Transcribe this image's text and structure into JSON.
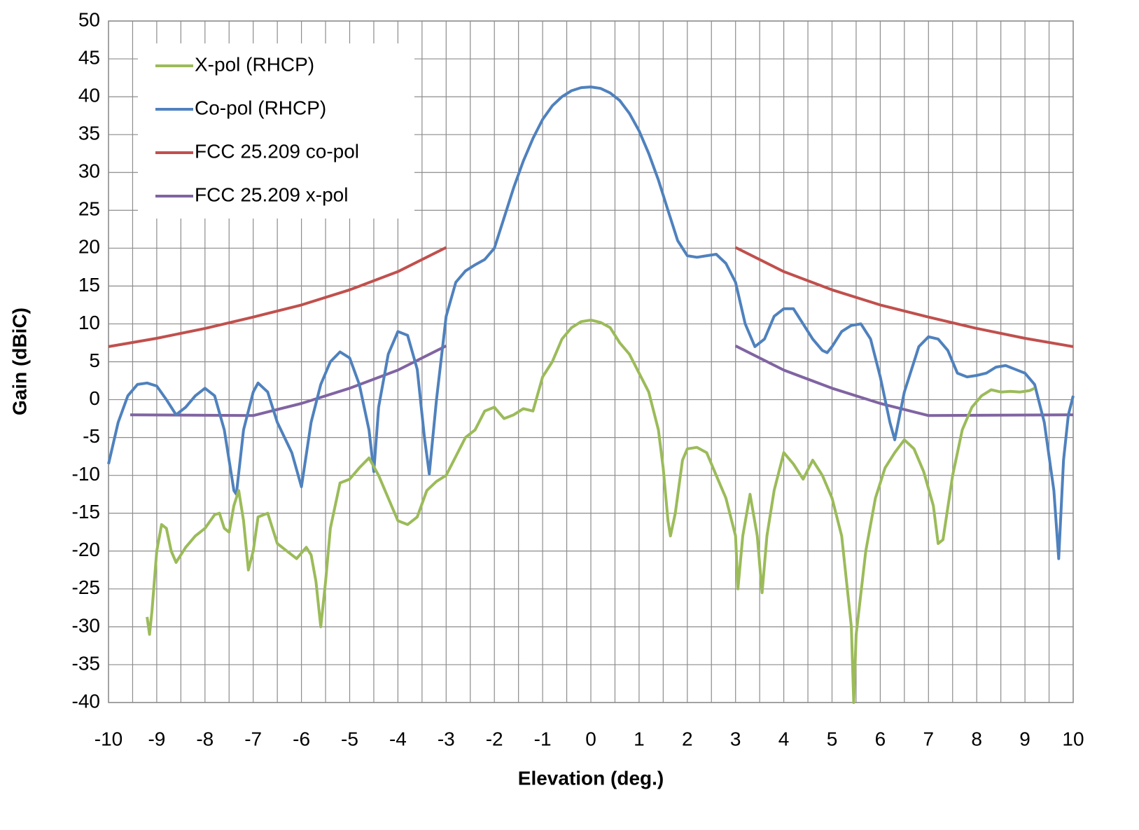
{
  "chart_data": {
    "type": "line",
    "x_label": "Elevation (deg.)",
    "y_label": "Gain (dBiC)",
    "xlim": [
      -10,
      10
    ],
    "ylim": [
      -40,
      50
    ],
    "xticks": [
      -10,
      -9,
      -8,
      -7,
      -6,
      -5,
      -4,
      -3,
      -2,
      -1,
      0,
      1,
      2,
      3,
      4,
      5,
      6,
      7,
      8,
      9,
      10
    ],
    "yticks": [
      -40,
      -35,
      -30,
      -25,
      -20,
      -15,
      -10,
      -5,
      0,
      5,
      10,
      15,
      20,
      25,
      30,
      35,
      40,
      45,
      50
    ],
    "grid": true,
    "minor_x_grid": true,
    "legend": "upper-left",
    "series": [
      {
        "name": "X-pol (RHCP)",
        "color": "#9bbb59",
        "x": [
          -9.2,
          -9.15,
          -9.1,
          -9.0,
          -8.9,
          -8.8,
          -8.7,
          -8.6,
          -8.4,
          -8.2,
          -8.0,
          -7.8,
          -7.7,
          -7.6,
          -7.5,
          -7.4,
          -7.3,
          -7.2,
          -7.1,
          -7.0,
          -6.9,
          -6.7,
          -6.5,
          -6.3,
          -6.1,
          -5.9,
          -5.8,
          -5.7,
          -5.6,
          -5.5,
          -5.4,
          -5.2,
          -5.0,
          -4.8,
          -4.6,
          -4.4,
          -4.2,
          -4.0,
          -3.8,
          -3.6,
          -3.4,
          -3.2,
          -3.0,
          -2.8,
          -2.6,
          -2.4,
          -2.2,
          -2.0,
          -1.8,
          -1.6,
          -1.4,
          -1.2,
          -1.0,
          -0.8,
          -0.6,
          -0.4,
          -0.2,
          0,
          0.2,
          0.4,
          0.6,
          0.8,
          1.0,
          1.2,
          1.4,
          1.5,
          1.6,
          1.65,
          1.75,
          1.9,
          2.0,
          2.2,
          2.4,
          2.6,
          2.8,
          3.0,
          3.05,
          3.15,
          3.3,
          3.45,
          3.55,
          3.65,
          3.8,
          4.0,
          4.2,
          4.4,
          4.6,
          4.8,
          5.0,
          5.2,
          5.4,
          5.45,
          5.5,
          5.7,
          5.9,
          6.1,
          6.3,
          6.5,
          6.7,
          6.9,
          7.1,
          7.2,
          7.3,
          7.5,
          7.7,
          7.9,
          8.1,
          8.3,
          8.5,
          8.7,
          8.9,
          9.1,
          9.2
        ],
        "values": [
          -28.7,
          -31,
          -28,
          -20,
          -16.5,
          -17,
          -20,
          -21.5,
          -19.5,
          -18,
          -17,
          -15.2,
          -15,
          -17,
          -17.5,
          -14,
          -12,
          -16,
          -22.5,
          -20,
          -15.5,
          -15,
          -19,
          -20,
          -21,
          -19.5,
          -20.5,
          -24,
          -30,
          -24,
          -17,
          -11,
          -10.5,
          -9,
          -7.7,
          -10,
          -13,
          -16,
          -16.5,
          -15.5,
          -12,
          -10.8,
          -10,
          -7.5,
          -5,
          -4,
          -1.5,
          -1,
          -2.5,
          -2,
          -1.2,
          -1.5,
          3,
          5,
          8,
          9.5,
          10.3,
          10.5,
          10.2,
          9.5,
          7.5,
          6,
          3.5,
          1,
          -4,
          -9,
          -16,
          -18,
          -15,
          -8,
          -6.5,
          -6.3,
          -7,
          -10,
          -13,
          -18,
          -25,
          -18,
          -12.5,
          -18,
          -25.5,
          -18,
          -12,
          -7,
          -8.5,
          -10.5,
          -8,
          -10,
          -13,
          -18,
          -30,
          -40,
          -31,
          -20,
          -13,
          -9,
          -7,
          -5.3,
          -6.5,
          -9.5,
          -14,
          -19,
          -18.5,
          -10,
          -4,
          -1,
          0.5,
          1.3,
          1,
          1.1,
          1,
          1.2,
          1.5
        ]
      },
      {
        "name": "Co-pol (RHCP)",
        "color": "#4f81bd",
        "x": [
          -10,
          -9.8,
          -9.6,
          -9.4,
          -9.2,
          -9.0,
          -8.8,
          -8.6,
          -8.4,
          -8.2,
          -8.0,
          -7.8,
          -7.6,
          -7.4,
          -7.35,
          -7.2,
          -7.0,
          -6.9,
          -6.7,
          -6.5,
          -6.2,
          -6.0,
          -5.8,
          -5.6,
          -5.4,
          -5.2,
          -5.0,
          -4.8,
          -4.6,
          -4.5,
          -4.4,
          -4.2,
          -4.0,
          -3.8,
          -3.6,
          -3.45,
          -3.35,
          -3.2,
          -3.0,
          -2.8,
          -2.6,
          -2.4,
          -2.2,
          -2.0,
          -1.8,
          -1.6,
          -1.4,
          -1.2,
          -1.0,
          -0.8,
          -0.6,
          -0.4,
          -0.2,
          0,
          0.2,
          0.4,
          0.6,
          0.8,
          1.0,
          1.2,
          1.4,
          1.6,
          1.8,
          2.0,
          2.2,
          2.4,
          2.6,
          2.8,
          3.0,
          3.2,
          3.4,
          3.6,
          3.8,
          4.0,
          4.2,
          4.4,
          4.6,
          4.8,
          4.9,
          5.0,
          5.2,
          5.4,
          5.6,
          5.8,
          6.0,
          6.2,
          6.3,
          6.5,
          6.8,
          7.0,
          7.2,
          7.4,
          7.6,
          7.8,
          8.0,
          8.2,
          8.4,
          8.6,
          8.8,
          9.0,
          9.2,
          9.4,
          9.6,
          9.7,
          9.8,
          9.9,
          10
        ],
        "values": [
          -8.5,
          -3,
          0.5,
          2,
          2.2,
          1.8,
          0,
          -2,
          -1,
          0.5,
          1.5,
          0.5,
          -4,
          -12,
          -12.5,
          -4,
          1,
          2.2,
          1,
          -3,
          -7,
          -11.5,
          -3,
          2,
          5,
          6.3,
          5.5,
          2,
          -4,
          -9.5,
          -1,
          6,
          9,
          8.5,
          4,
          -5,
          -9.8,
          0,
          11,
          15.5,
          17,
          17.8,
          18.5,
          20,
          24,
          28,
          31.5,
          34.5,
          37,
          38.8,
          40,
          40.8,
          41.2,
          41.3,
          41.1,
          40.5,
          39.5,
          37.8,
          35.5,
          32.5,
          29,
          25,
          21,
          19,
          18.8,
          19,
          19.2,
          18,
          15.5,
          10,
          7,
          8,
          11,
          12,
          12,
          10,
          8,
          6.5,
          6.2,
          7,
          9,
          9.8,
          10,
          8,
          3,
          -3,
          -5.3,
          1,
          7,
          8.3,
          8,
          6.5,
          3.5,
          3,
          3.2,
          3.5,
          4.3,
          4.5,
          4,
          3.5,
          2,
          -3,
          -12,
          -21,
          -8,
          -2,
          0.5
        ]
      },
      {
        "name": "FCC 25.209 co-pol",
        "color": "#c0504d",
        "x": [
          -10,
          -9,
          -8,
          -7,
          -6,
          -5,
          -4,
          -3,
          0,
          3,
          4,
          5,
          6,
          7,
          8,
          9,
          10
        ],
        "values": [
          7.0,
          8.1,
          9.4,
          10.9,
          12.5,
          14.5,
          16.9,
          20.1,
          null,
          20.1,
          16.9,
          14.5,
          12.5,
          10.9,
          9.4,
          8.1,
          7.0
        ]
      },
      {
        "name": "FCC 25.209 x-pol",
        "color": "#8064a2",
        "x": [
          -9.55,
          -7,
          -6,
          -5,
          -4,
          -3,
          0,
          3,
          4,
          5,
          6,
          7,
          10
        ],
        "values": [
          -2,
          -2.1,
          -0.5,
          1.5,
          3.9,
          7.1,
          null,
          7.1,
          3.9,
          1.5,
          -0.5,
          -2.1,
          -2
        ]
      }
    ]
  }
}
